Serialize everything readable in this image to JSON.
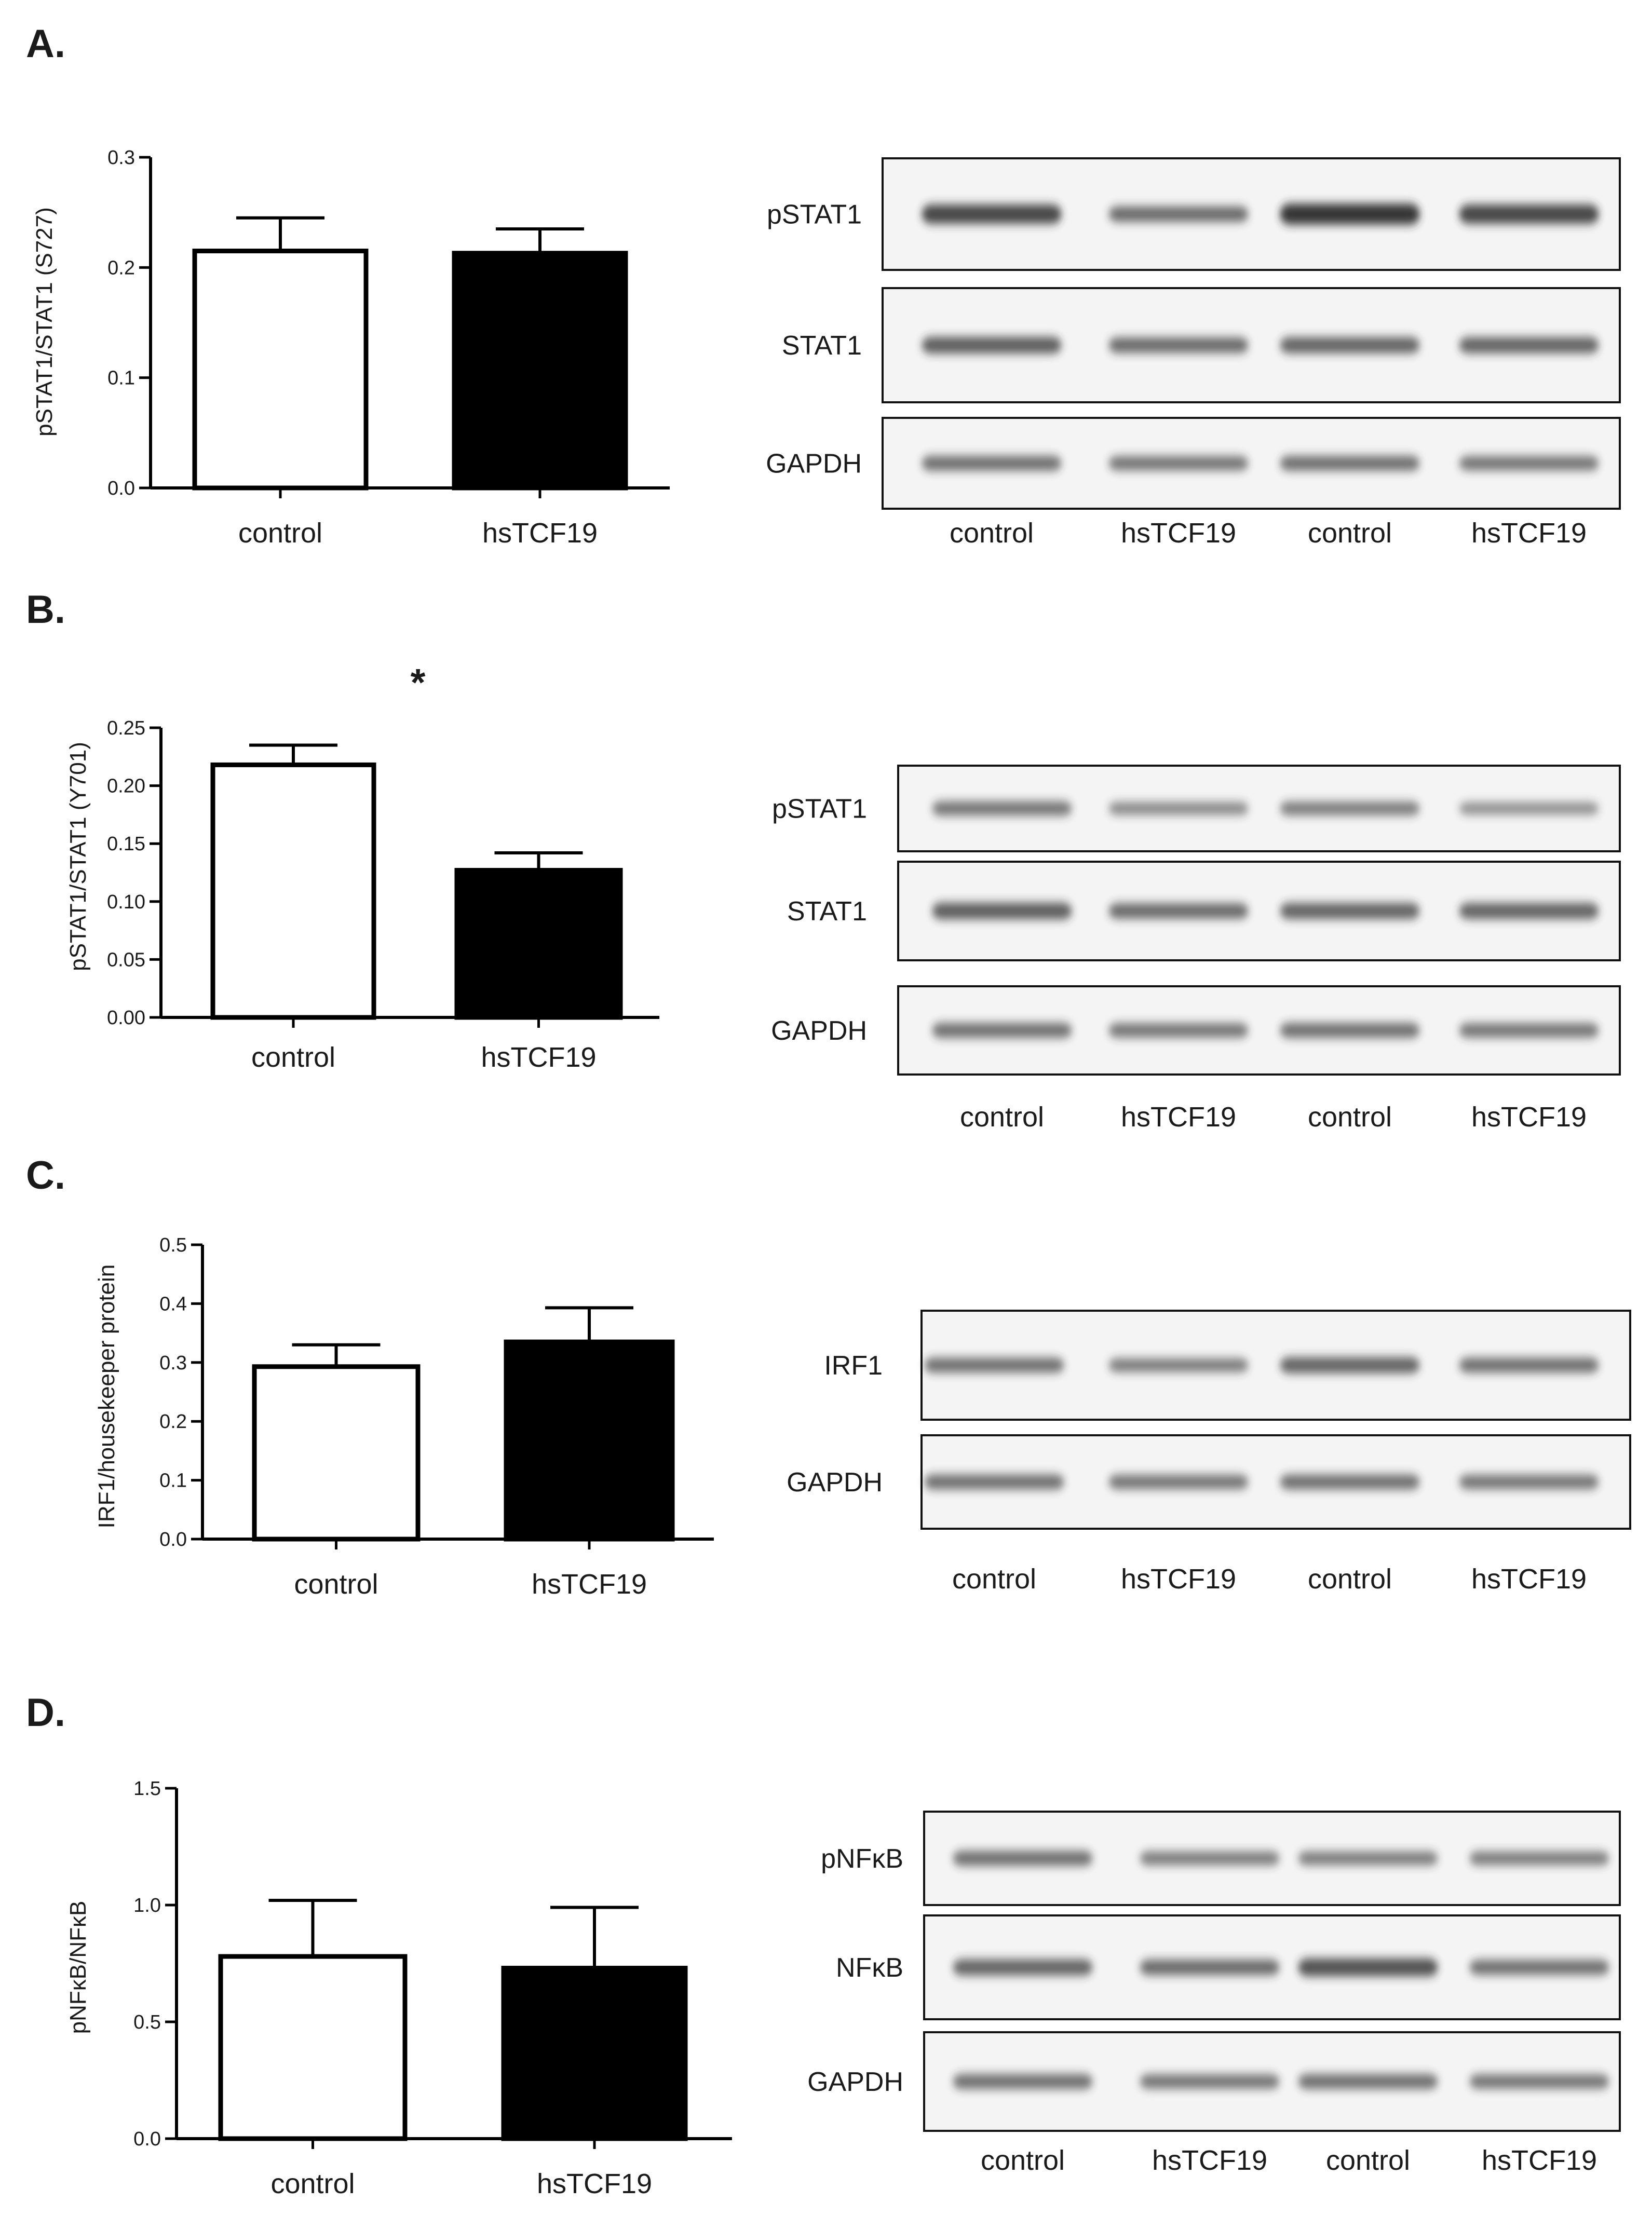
{
  "chart_data": [
    {
      "panel_label": "A.",
      "type": "bar",
      "categories": [
        "control",
        "hsTCF19"
      ],
      "values": [
        0.215,
        0.213
      ],
      "errors": [
        0.03,
        0.022
      ],
      "ylabel": "pSTAT1/STAT1 (S727)",
      "ylim": [
        0,
        0.3
      ],
      "yticks": [
        "0.0",
        "0.1",
        "0.2",
        "0.3"
      ],
      "significance": "",
      "blot": {
        "bands": [
          {
            "label": "pSTAT1",
            "intensity": [
              0.85,
              0.55,
              1.0,
              0.85
            ]
          },
          {
            "label": "STAT1",
            "intensity": [
              0.65,
              0.55,
              0.6,
              0.6
            ]
          },
          {
            "label": "GAPDH",
            "intensity": [
              0.5,
              0.45,
              0.5,
              0.45
            ]
          }
        ],
        "lanes": [
          "control",
          "hsTCF19",
          "control",
          "hsTCF19"
        ]
      }
    },
    {
      "panel_label": "B.",
      "type": "bar",
      "categories": [
        "control",
        "hsTCF19"
      ],
      "values": [
        0.218,
        0.127
      ],
      "errors": [
        0.017,
        0.015
      ],
      "ylabel": "pSTAT1/STAT1 (Y701)",
      "ylim": [
        0,
        0.25
      ],
      "yticks": [
        "0.00",
        "0.05",
        "0.10",
        "0.15",
        "0.20",
        "0.25"
      ],
      "significance": "*",
      "blot": {
        "bands": [
          {
            "label": "pSTAT1",
            "intensity": [
              0.45,
              0.3,
              0.4,
              0.25
            ]
          },
          {
            "label": "STAT1",
            "intensity": [
              0.65,
              0.55,
              0.6,
              0.6
            ]
          },
          {
            "label": "GAPDH",
            "intensity": [
              0.5,
              0.45,
              0.5,
              0.45
            ]
          }
        ],
        "lanes": [
          "control",
          "hsTCF19",
          "control",
          "hsTCF19"
        ]
      }
    },
    {
      "panel_label": "C.",
      "type": "bar",
      "categories": [
        "control",
        "hsTCF19"
      ],
      "values": [
        0.293,
        0.335
      ],
      "errors": [
        0.037,
        0.058
      ],
      "ylabel": "IRF1/housekeeper protein",
      "ylim": [
        0,
        0.5
      ],
      "yticks": [
        "0.0",
        "0.1",
        "0.2",
        "0.3",
        "0.4",
        "0.5"
      ],
      "significance": "",
      "blot": {
        "bands": [
          {
            "label": "IRF1",
            "intensity": [
              0.5,
              0.4,
              0.6,
              0.5
            ]
          },
          {
            "label": "GAPDH",
            "intensity": [
              0.5,
              0.45,
              0.5,
              0.45
            ]
          }
        ],
        "lanes": [
          "control",
          "hsTCF19",
          "control",
          "hsTCF19"
        ]
      }
    },
    {
      "panel_label": "D.",
      "type": "bar",
      "categories": [
        "control",
        "hsTCF19"
      ],
      "values": [
        0.78,
        0.73
      ],
      "errors": [
        0.24,
        0.26
      ],
      "ylabel": "pNFκB/NFκB",
      "ylim": [
        0,
        1.5
      ],
      "yticks": [
        "0.0",
        "0.5",
        "1.0",
        "1.5"
      ],
      "significance": "",
      "blot": {
        "bands": [
          {
            "label": "pNFκB",
            "intensity": [
              0.5,
              0.4,
              0.4,
              0.4
            ]
          },
          {
            "label": "NFκB",
            "intensity": [
              0.6,
              0.55,
              0.75,
              0.5
            ]
          },
          {
            "label": "GAPDH",
            "intensity": [
              0.5,
              0.45,
              0.5,
              0.45
            ]
          }
        ],
        "lanes": [
          "control",
          "hsTCF19",
          "control",
          "hsTCF19"
        ]
      }
    }
  ],
  "colors": {
    "control_bar": "#ffffff",
    "hstcf19_bar": "#000000",
    "axis": "#000000",
    "band": "#2a2a2a",
    "blot_bg": "#f4f4f4"
  }
}
